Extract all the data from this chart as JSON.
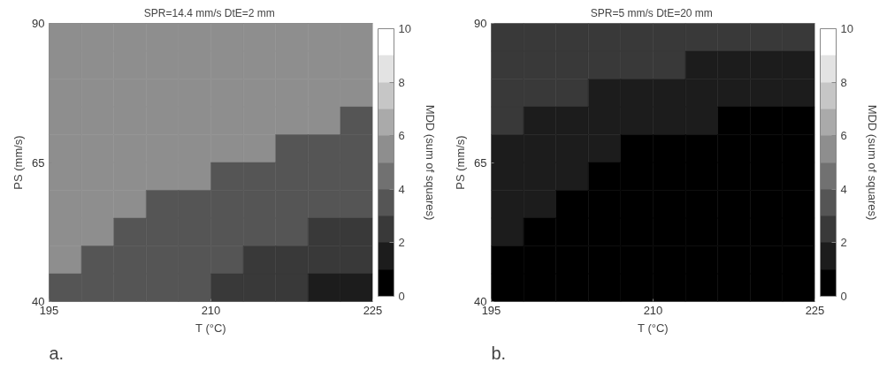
{
  "chart_data": [
    {
      "type": "heatmap",
      "title": "SPR=14.4 mm/s  DtE=2 mm",
      "xlabel": "T (°C)",
      "ylabel": "PS (mm/s)",
      "clabel": "MDD (sum of squares)",
      "annotations": [
        "a."
      ],
      "x": [
        196.5,
        199.5,
        202.5,
        205.5,
        208.5,
        211.5,
        214.5,
        217.5,
        220.5,
        223.5
      ],
      "y": [
        87.5,
        82.5,
        77.5,
        72.5,
        67.5,
        62.5,
        57.5,
        52.5,
        47.5,
        42.5
      ],
      "xlim": [
        195,
        225
      ],
      "ylim": [
        40,
        90
      ],
      "xticks": [
        195,
        210,
        225
      ],
      "yticks": [
        40,
        65,
        90
      ],
      "clim": [
        0,
        10
      ],
      "cticks": [
        0,
        2,
        4,
        6,
        8,
        10
      ],
      "grid": false,
      "cells": [
        [
          5.5,
          5.5,
          5.5,
          5.5,
          5.5,
          5.5,
          5.5,
          5.5,
          5.5,
          5.5
        ],
        [
          5.5,
          5.5,
          5.5,
          5.5,
          5.5,
          5.5,
          5.5,
          5.5,
          5.5,
          5.5
        ],
        [
          5.5,
          5.5,
          5.5,
          5.5,
          5.5,
          5.5,
          5.5,
          5.5,
          5.5,
          5.5
        ],
        [
          5.5,
          5.5,
          5.5,
          5.5,
          5.5,
          5.5,
          5.5,
          5.5,
          5.5,
          3.5
        ],
        [
          5.5,
          5.5,
          5.5,
          5.5,
          5.5,
          5.5,
          5.5,
          3.5,
          3.5,
          3.5
        ],
        [
          5.5,
          5.5,
          5.5,
          5.5,
          5.5,
          3.5,
          3.5,
          3.5,
          3.5,
          3.5
        ],
        [
          5.5,
          5.5,
          5.5,
          3.5,
          3.5,
          3.5,
          3.5,
          3.5,
          3.5,
          3.5
        ],
        [
          5.5,
          5.5,
          3.5,
          3.5,
          3.5,
          3.5,
          3.5,
          3.5,
          2.5,
          2.5
        ],
        [
          5.5,
          3.5,
          3.5,
          3.5,
          3.5,
          3.5,
          2.5,
          2.5,
          2.5,
          2.5
        ],
        [
          3.5,
          3.5,
          3.5,
          3.5,
          3.5,
          2.5,
          2.5,
          2.5,
          1.5,
          1.5
        ]
      ]
    },
    {
      "type": "heatmap",
      "title": "SPR=5 mm/s  DtE=20 mm",
      "xlabel": "T (°C)",
      "ylabel": "PS (mm/s)",
      "clabel": "MDD (sum of squares)",
      "annotations": [
        "b."
      ],
      "x": [
        196.5,
        199.5,
        202.5,
        205.5,
        208.5,
        211.5,
        214.5,
        217.5,
        220.5,
        223.5
      ],
      "y": [
        87.5,
        82.5,
        77.5,
        72.5,
        67.5,
        62.5,
        57.5,
        52.5,
        47.5,
        42.5
      ],
      "xlim": [
        195,
        225
      ],
      "ylim": [
        40,
        90
      ],
      "xticks": [
        195,
        210,
        225
      ],
      "yticks": [
        40,
        65,
        90
      ],
      "clim": [
        0,
        10
      ],
      "cticks": [
        0,
        2,
        4,
        6,
        8,
        10
      ],
      "grid": false,
      "cells": [
        [
          2.5,
          2.5,
          2.5,
          2.5,
          2.5,
          2.5,
          2.5,
          2.5,
          2.5,
          2.5
        ],
        [
          2.5,
          2.5,
          2.5,
          2.5,
          2.5,
          2.5,
          1.5,
          1.5,
          1.5,
          1.5
        ],
        [
          2.5,
          2.5,
          2.5,
          1.5,
          1.5,
          1.5,
          1.5,
          1.5,
          1.5,
          1.5
        ],
        [
          2.5,
          1.5,
          1.5,
          1.5,
          1.5,
          1.5,
          1.5,
          0.5,
          0.5,
          0.5
        ],
        [
          1.5,
          1.5,
          1.5,
          1.5,
          0.5,
          0.5,
          0.5,
          0.5,
          0.5,
          0.5
        ],
        [
          1.5,
          1.5,
          1.5,
          0.5,
          0.5,
          0.5,
          0.5,
          0.5,
          0.5,
          0.5
        ],
        [
          1.5,
          1.5,
          0.5,
          0.5,
          0.5,
          0.5,
          0.5,
          0.5,
          0.5,
          0.5
        ],
        [
          1.5,
          0.5,
          0.5,
          0.5,
          0.5,
          0.5,
          0.5,
          0.5,
          0.5,
          0.5
        ],
        [
          0.5,
          0.5,
          0.5,
          0.5,
          0.5,
          0.5,
          0.5,
          0.5,
          0.5,
          0.5
        ],
        [
          0.5,
          0.5,
          0.5,
          0.5,
          0.5,
          0.5,
          0.5,
          0.5,
          0.5,
          0.5
        ]
      ]
    }
  ]
}
